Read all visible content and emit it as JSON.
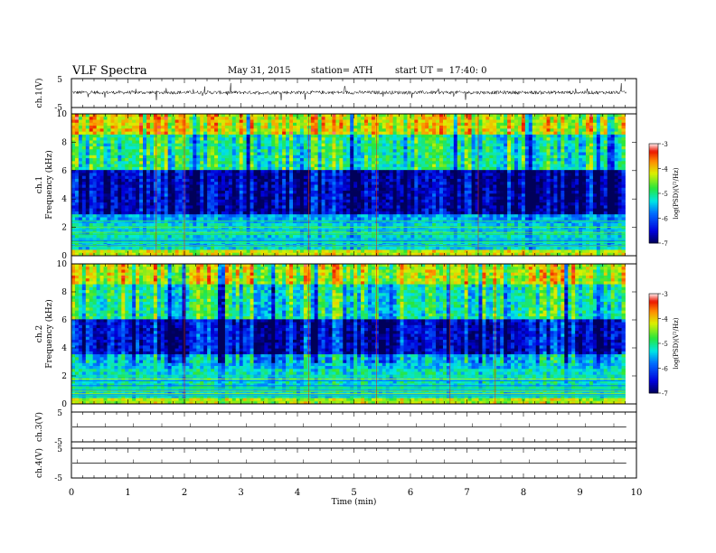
{
  "header": {
    "title": "VLF  Spectra",
    "date": "May 31, 2015",
    "station": "station= ATH",
    "start_label": "start  UT  =",
    "start_time": "17:40: 0"
  },
  "chart_data": [
    {
      "type": "line",
      "panel": "ch1-waveform",
      "ylabel": "ch.1(V)",
      "yticks": [
        "5",
        "-5"
      ],
      "ylim": [
        -5,
        5
      ],
      "xlim": [
        0,
        10
      ],
      "description_values": "noise trace centered slightly above 0 V, amplitude about ±1 V with spikes",
      "series": [
        {
          "level": 0.2,
          "amplitude": 1.0
        }
      ]
    },
    {
      "type": "heatmap",
      "panel": "ch1-spectrogram",
      "ylabel_1": "ch.1",
      "ylabel_2": "Frequency (kHz)",
      "yticks": [
        "10",
        "8",
        "6",
        "4",
        "2",
        "0"
      ],
      "ylim": [
        0,
        10
      ],
      "xlim": [
        0,
        9.8
      ],
      "colorbar": {
        "label": "log(PSD)(V²/Hz)",
        "ticks": [
          "-3",
          "-4",
          "-5",
          "-6",
          "-7"
        ],
        "range": [
          -7,
          -3
        ]
      },
      "bands_khz_logpsd": [
        {
          "from": 0,
          "to": 0.5,
          "value": -4.2
        },
        {
          "from": 0.5,
          "to": 2.2,
          "value": -5.3
        },
        {
          "from": 2.2,
          "to": 3.0,
          "value": -5.6
        },
        {
          "from": 3.0,
          "to": 6.0,
          "value": -6.6
        },
        {
          "from": 6.0,
          "to": 8.5,
          "value": -5.0
        },
        {
          "from": 8.5,
          "to": 10,
          "value": -4.1
        }
      ],
      "vertical_events_min": [
        1.5,
        2.0,
        4.2,
        5.4,
        7.2
      ]
    },
    {
      "type": "heatmap",
      "panel": "ch2-spectrogram",
      "ylabel_1": "ch.2",
      "ylabel_2": "Frequency (kHz)",
      "yticks": [
        "10",
        "8",
        "6",
        "4",
        "2",
        "0"
      ],
      "ylim": [
        0,
        10
      ],
      "xlim": [
        0,
        9.8
      ],
      "colorbar": {
        "label": "log(PSD)(V²/Hz)",
        "ticks": [
          "-3",
          "-4",
          "-5",
          "-6",
          "-7"
        ],
        "range": [
          -7,
          -3
        ]
      },
      "bands_khz_logpsd": [
        {
          "from": 0,
          "to": 0.5,
          "value": -4.3
        },
        {
          "from": 0.5,
          "to": 2.5,
          "value": -5.2
        },
        {
          "from": 2.5,
          "to": 3.5,
          "value": -5.4
        },
        {
          "from": 3.5,
          "to": 6.0,
          "value": -6.4
        },
        {
          "from": 6.0,
          "to": 8.5,
          "value": -5.0
        },
        {
          "from": 8.5,
          "to": 10,
          "value": -4.2
        }
      ],
      "vertical_events_min": [
        2.0,
        4.2,
        5.4,
        6.7,
        7.5
      ]
    },
    {
      "type": "line",
      "panel": "ch3-waveform",
      "ylabel": "ch.3(V)",
      "yticks": [
        "5",
        "-5"
      ],
      "ylim": [
        -5,
        5
      ],
      "xlim": [
        0,
        10
      ],
      "series": [
        {
          "level": 0.0
        }
      ]
    },
    {
      "type": "line",
      "panel": "ch4-waveform",
      "ylabel": "ch.4(V)",
      "yticks": [
        "5",
        "-5"
      ],
      "ylim": [
        -5,
        5
      ],
      "xlim": [
        0,
        10
      ],
      "series": [
        {
          "level": 0.0
        }
      ]
    }
  ],
  "xaxis": {
    "label": "Time  (min)",
    "ticks": [
      "0",
      "1",
      "2",
      "3",
      "4",
      "5",
      "6",
      "7",
      "8",
      "9",
      "10"
    ],
    "range": [
      0,
      10
    ]
  }
}
